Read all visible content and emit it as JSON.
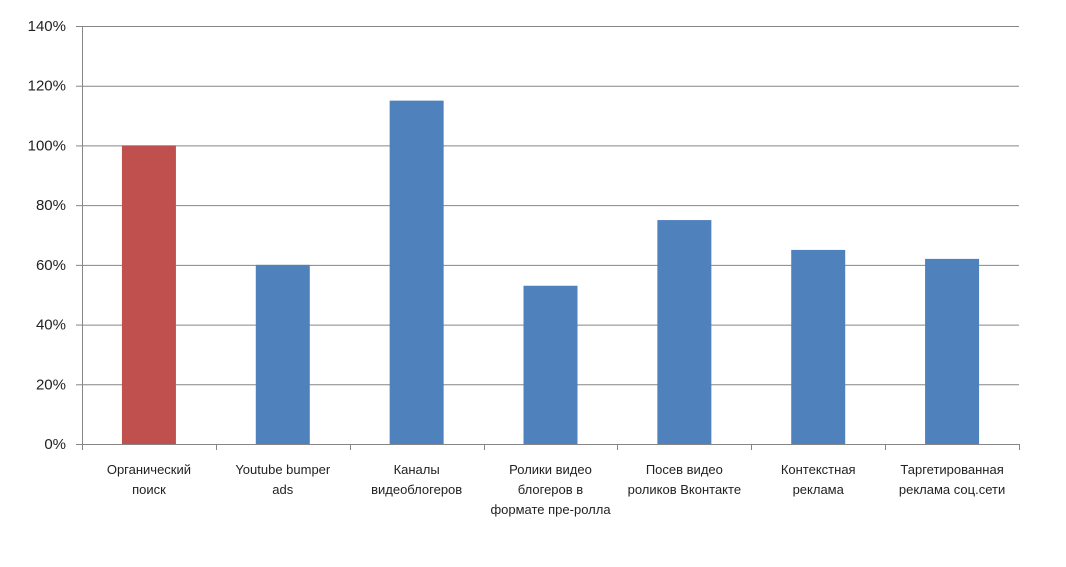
{
  "chart_data": {
    "type": "bar",
    "title": "",
    "xlabel": "",
    "ylabel": "",
    "ylim": [
      0,
      140
    ],
    "yticks": [
      0,
      20,
      40,
      60,
      80,
      100,
      120,
      140
    ],
    "ytick_labels": [
      "0%",
      "20%",
      "40%",
      "60%",
      "80%",
      "100%",
      "120%",
      "140%"
    ],
    "grid": true,
    "legend": "none",
    "categories": [
      [
        "Органический",
        "поиск"
      ],
      [
        "Youtube bumper",
        "ads"
      ],
      [
        "Каналы",
        "видеоблогеров"
      ],
      [
        "Ролики видео",
        "блогеров в",
        "формате пре-ролла"
      ],
      [
        "Посев видео",
        "роликов Вконтакте"
      ],
      [
        "Контекстная",
        "реклама"
      ],
      [
        "Таргетированная",
        "реклама соц.сети"
      ]
    ],
    "values": [
      100,
      60,
      115,
      53,
      75,
      65,
      62
    ],
    "bar_colors": [
      "#C0504D",
      "#4F81BD",
      "#4F81BD",
      "#4F81BD",
      "#4F81BD",
      "#4F81BD",
      "#4F81BD"
    ],
    "grid_color": "#868686",
    "axis_color": "#868686"
  }
}
